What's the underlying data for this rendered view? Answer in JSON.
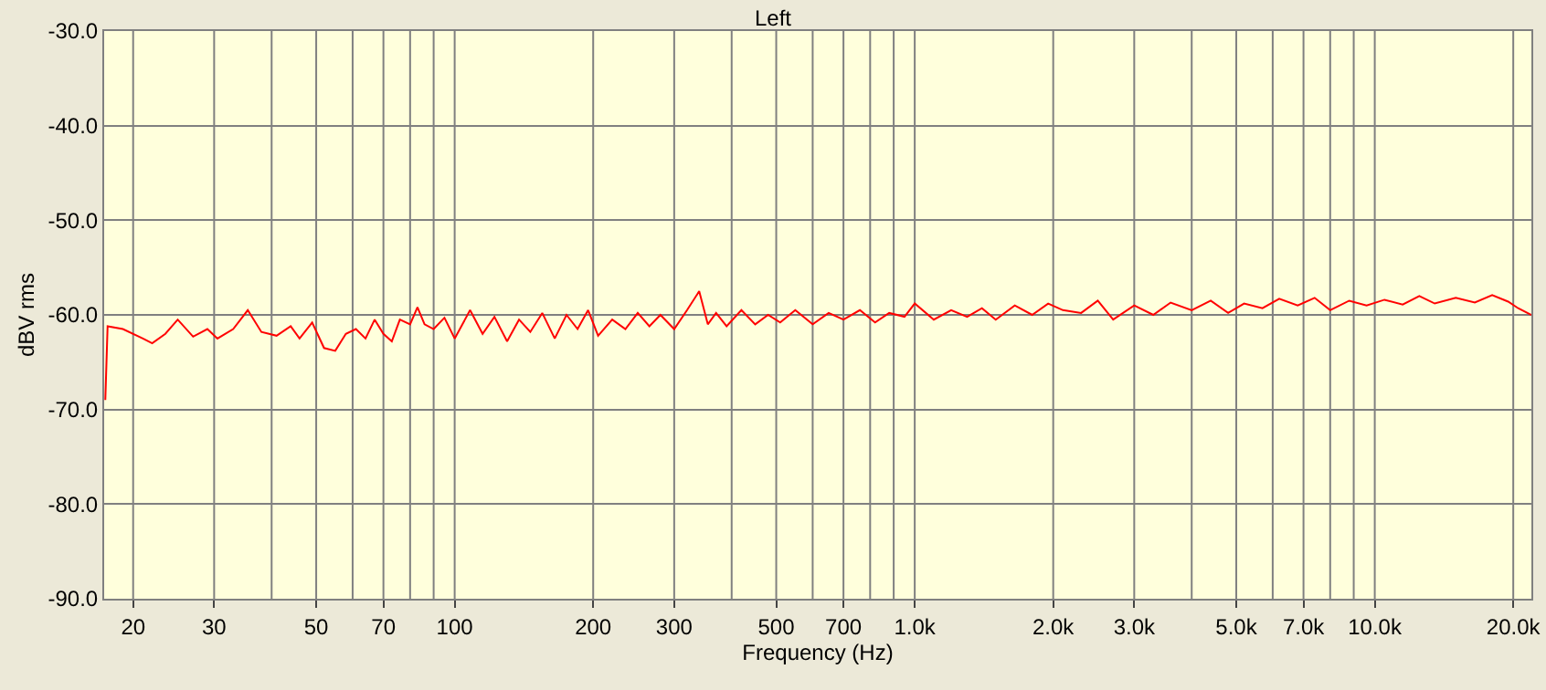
{
  "chart_data": {
    "type": "line",
    "title": "Left",
    "xlabel": "Frequency (Hz)",
    "ylabel": "dBV rms",
    "log": "x",
    "grid": true,
    "marker": "none",
    "line_style": "solid",
    "xlim": [
      17.3,
      21900
    ],
    "ylim": [
      -90,
      -30
    ],
    "xticks": [
      20,
      30,
      50,
      70,
      100,
      200,
      300,
      500,
      700,
      {
        "value": 1000,
        "label": "1.0k"
      },
      {
        "value": 2000,
        "label": "2.0k"
      },
      {
        "value": 3000,
        "label": "3.0k"
      },
      {
        "value": 5000,
        "label": "5.0k"
      },
      {
        "value": 7000,
        "label": "7.0k"
      },
      {
        "value": 10000,
        "label": "10.0k"
      },
      {
        "value": 20000,
        "label": "20.0k"
      }
    ],
    "yticks": [
      {
        "value": -90,
        "label": "-90.0"
      },
      {
        "value": -80,
        "label": "-80.0"
      },
      {
        "value": -70,
        "label": "-70.0"
      },
      {
        "value": -60,
        "label": "-60.0"
      },
      {
        "value": -50,
        "label": "-50.0"
      },
      {
        "value": -40,
        "label": "-40.0"
      },
      {
        "value": -30,
        "label": "-30.0"
      }
    ],
    "series": [
      {
        "color": "#ff0000",
        "x": [
          17.4,
          17.6,
          19,
          21,
          22,
          23.5,
          25,
          27,
          29,
          30.5,
          33,
          35.5,
          38,
          41,
          44,
          46,
          49,
          52,
          55,
          58,
          61,
          64,
          67,
          70,
          73,
          76,
          80,
          83,
          86,
          90,
          95,
          100,
          108,
          115,
          122,
          130,
          138,
          146,
          155,
          165,
          175,
          185,
          195,
          205,
          220,
          235,
          250,
          265,
          280,
          300,
          320,
          340,
          355,
          370,
          390,
          420,
          450,
          480,
          510,
          550,
          600,
          650,
          700,
          760,
          820,
          880,
          950,
          1000,
          1100,
          1200,
          1300,
          1400,
          1500,
          1650,
          1800,
          1950,
          2100,
          2300,
          2500,
          2700,
          3000,
          3300,
          3600,
          4000,
          4400,
          4800,
          5200,
          5700,
          6200,
          6800,
          7400,
          8000,
          8800,
          9600,
          10500,
          11500,
          12500,
          13500,
          15000,
          16500,
          18000,
          19500,
          20500,
          21900
        ],
        "values": [
          -69,
          -61.2,
          -61.5,
          -62.5,
          -63,
          -62,
          -60.5,
          -62.3,
          -61.5,
          -62.5,
          -61.5,
          -59.5,
          -61.8,
          -62.2,
          -61.2,
          -62.5,
          -60.8,
          -63.5,
          -63.8,
          -62,
          -61.5,
          -62.5,
          -60.5,
          -62,
          -62.8,
          -60.5,
          -61,
          -59.2,
          -61,
          -61.5,
          -60.3,
          -62.5,
          -59.5,
          -62,
          -60.2,
          -62.8,
          -60.5,
          -61.8,
          -59.8,
          -62.5,
          -60,
          -61.5,
          -59.5,
          -62.2,
          -60.5,
          -61.5,
          -59.8,
          -61.2,
          -60,
          -61.5,
          -59.5,
          -57.5,
          -61,
          -59.8,
          -61.2,
          -59.5,
          -61,
          -60,
          -60.8,
          -59.5,
          -61,
          -59.8,
          -60.5,
          -59.5,
          -60.8,
          -59.8,
          -60.2,
          -58.8,
          -60.5,
          -59.5,
          -60.2,
          -59.3,
          -60.5,
          -59,
          -60,
          -58.8,
          -59.5,
          -59.8,
          -58.5,
          -60.5,
          -59,
          -60,
          -58.7,
          -59.5,
          -58.5,
          -59.8,
          -58.8,
          -59.3,
          -58.3,
          -59,
          -58.2,
          -59.5,
          -58.5,
          -59,
          -58.4,
          -58.9,
          -58,
          -58.8,
          -58.2,
          -58.7,
          -57.9,
          -58.6,
          -59.3,
          -60
        ]
      }
    ]
  }
}
